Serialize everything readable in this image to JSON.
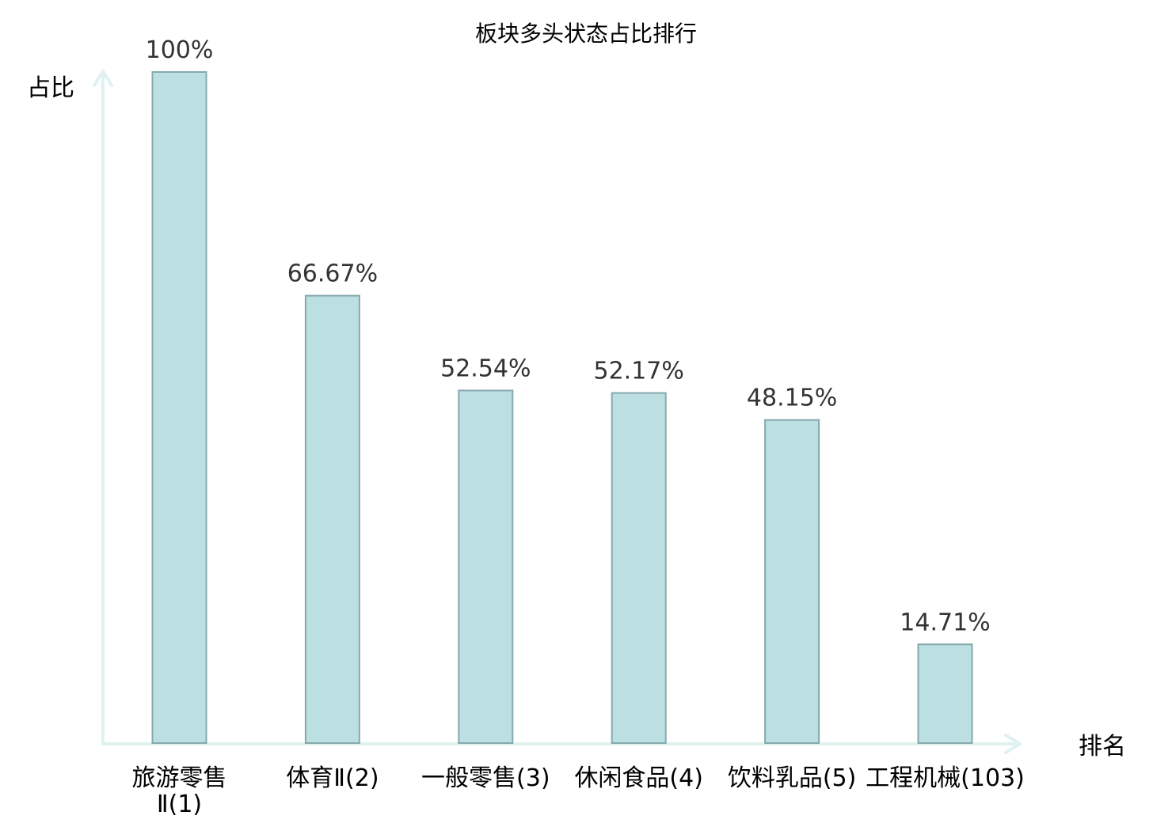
{
  "chart_data": {
    "type": "bar",
    "title": "板块多头状态占比排行",
    "ylabel": "占比",
    "xlabel": "排名",
    "ylim": [
      0,
      100
    ],
    "grid": false,
    "categories": [
      {
        "lines": [
          "旅游零售",
          "Ⅱ(1)"
        ],
        "highlight": false
      },
      {
        "lines": [
          "体育Ⅱ(2)"
        ],
        "highlight": false
      },
      {
        "lines": [
          "一般零售(3)"
        ],
        "highlight": false
      },
      {
        "lines": [
          "休闲食品(4)"
        ],
        "highlight": false
      },
      {
        "lines": [
          "饮料乳品(5)"
        ],
        "highlight": false
      },
      {
        "lines": [
          "工程机械(103)"
        ],
        "highlight": true
      }
    ],
    "values": [
      100,
      66.67,
      52.54,
      52.17,
      48.15,
      14.71
    ],
    "value_labels": [
      "100%",
      "66.67%",
      "52.54%",
      "52.17%",
      "48.15%",
      "14.71%"
    ],
    "colors": {
      "bar_fill": "#bce0e2",
      "bar_stroke": "#86a9ad",
      "axis": "#dff2ef",
      "highlight_text": "#e8161b",
      "label_text": "#000000",
      "value_text": "#333333"
    }
  }
}
